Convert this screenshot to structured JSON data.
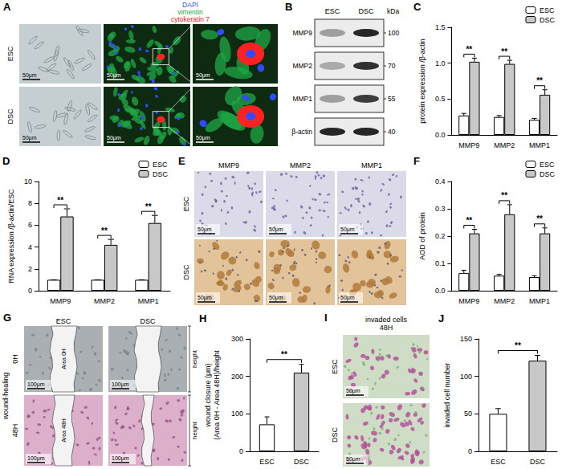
{
  "chart_data": [
    {
      "label": "C",
      "type": "bar",
      "categories": [
        "MMP9",
        "MMP2",
        "MMP1"
      ],
      "series": [
        {
          "name": "ESC",
          "color": "#ffffff",
          "values": [
            0.27,
            0.25,
            0.21
          ],
          "errors": [
            0.03,
            0.02,
            0.02
          ]
        },
        {
          "name": "DSC",
          "color": "#c8c8c8",
          "values": [
            1.02,
            0.99,
            0.56
          ],
          "errors": [
            0.05,
            0.05,
            0.07
          ]
        }
      ],
      "ylabel": "protein expression /β-actin",
      "ylim": [
        0,
        1.5
      ],
      "yticks": [
        {
          "value": 0,
          "label": "0.0"
        },
        {
          "value": 0.5,
          "label": "0.5"
        },
        {
          "value": 1,
          "label": "1.0"
        },
        {
          "value": 1.5,
          "label": "1.5"
        }
      ],
      "significance": [
        "**",
        "**",
        "**"
      ],
      "legend": "top-right",
      "grid": false
    },
    {
      "label": "D",
      "type": "bar",
      "categories": [
        "MMP9",
        "MMP2",
        "MMP1"
      ],
      "series": [
        {
          "name": "ESC",
          "color": "#ffffff",
          "values": [
            1,
            1,
            1
          ],
          "errors": [
            0,
            0,
            0
          ]
        },
        {
          "name": "DSC",
          "color": "#c8c8c8",
          "values": [
            6.8,
            4.2,
            6.2
          ],
          "errors": [
            0.7,
            0.5,
            0.7
          ]
        }
      ],
      "ylabel": "RNA expression /β-actin/ESC",
      "ylim": [
        0,
        10
      ],
      "yticks": [
        0,
        2,
        4,
        6,
        8,
        10
      ],
      "significance": [
        "**",
        "**",
        "**"
      ],
      "legend": "top-right",
      "grid": false
    },
    {
      "label": "F",
      "type": "bar",
      "categories": [
        "MMP9",
        "MMP2",
        "MMP1"
      ],
      "series": [
        {
          "name": "ESC",
          "color": "#ffffff",
          "values": [
            0.065,
            0.055,
            0.05
          ],
          "errors": [
            0.01,
            0.005,
            0.005
          ]
        },
        {
          "name": "DSC",
          "color": "#c8c8c8",
          "values": [
            0.21,
            0.28,
            0.21
          ],
          "errors": [
            0.015,
            0.035,
            0.02
          ]
        }
      ],
      "ylabel": "AOD of protein",
      "ylim": [
        0,
        0.4
      ],
      "yticks": [
        {
          "value": 0,
          "label": "0.0"
        },
        {
          "value": 0.1,
          "label": "0.1"
        },
        {
          "value": 0.2,
          "label": "0.2"
        },
        {
          "value": 0.3,
          "label": "0.3"
        },
        {
          "value": 0.4,
          "label": "0.4"
        }
      ],
      "significance": [
        "**",
        "**",
        "**"
      ],
      "legend": "top-right",
      "grid": false
    },
    {
      "label": "H",
      "type": "bar",
      "categories": [
        "ESC",
        "DSC"
      ],
      "values": [
        72,
        210
      ],
      "errors": [
        20,
        22
      ],
      "colors": [
        "#ffffff",
        "#c8c8c8"
      ],
      "ylabel": [
        "wound closure (μm)",
        "(Area 0H - Area 48H)/height"
      ],
      "ylim": [
        0,
        300
      ],
      "yticks": [
        0,
        100,
        200,
        300
      ],
      "significance": "**",
      "grid": false
    },
    {
      "label": "J",
      "type": "bar",
      "categories": [
        "ESC",
        "DSC"
      ],
      "values": [
        50,
        121
      ],
      "errors": [
        7,
        7
      ],
      "colors": [
        "#ffffff",
        "#c8c8c8"
      ],
      "ylabel": "invaded cell number",
      "ylim": [
        0,
        150
      ],
      "yticks": [
        0,
        50,
        100,
        150
      ],
      "significance": "**",
      "grid": false
    }
  ],
  "panels": {
    "A": {
      "label": "A",
      "rows": [
        "ESC",
        "DSC"
      ],
      "stains": [
        {
          "name": "DAPI",
          "color": "#2f4bff"
        },
        {
          "name": "vimentin",
          "color": "#1fa845"
        },
        {
          "name": "cytokeratin 7",
          "color": "#ff2222"
        }
      ],
      "scale_bar": "50μm"
    },
    "B": {
      "label": "B",
      "columns": [
        "ESC",
        "DSC"
      ],
      "unit": "kDa",
      "bands": [
        {
          "name": "MMP9",
          "kda": 100,
          "intensity": [
            0.35,
            0.9
          ]
        },
        {
          "name": "MMP2",
          "kda": 70,
          "intensity": [
            0.3,
            0.85
          ]
        },
        {
          "name": "MMP1",
          "kda": 55,
          "intensity": [
            0.35,
            0.8
          ]
        },
        {
          "name": "β-actin",
          "kda": 40,
          "intensity": [
            0.9,
            0.9
          ]
        }
      ]
    },
    "E": {
      "label": "E",
      "columns": [
        "MMP9",
        "MMP2",
        "MMP1"
      ],
      "rows": [
        "ESC",
        "DSC"
      ],
      "scale_bar": "50μm"
    },
    "G": {
      "label": "G",
      "title": "wound-healing",
      "columns": [
        "ESC",
        "DSC"
      ],
      "rows": [
        "0H",
        "48H"
      ],
      "areas": [
        "Area 0H",
        "Area 48H"
      ],
      "height_label": "height",
      "scale_bar": "100μm"
    },
    "I": {
      "label": "I",
      "title": [
        "invaded cells",
        "48H"
      ],
      "rows": [
        "ESC",
        "DSC"
      ],
      "scale_bar": "50μm"
    }
  }
}
